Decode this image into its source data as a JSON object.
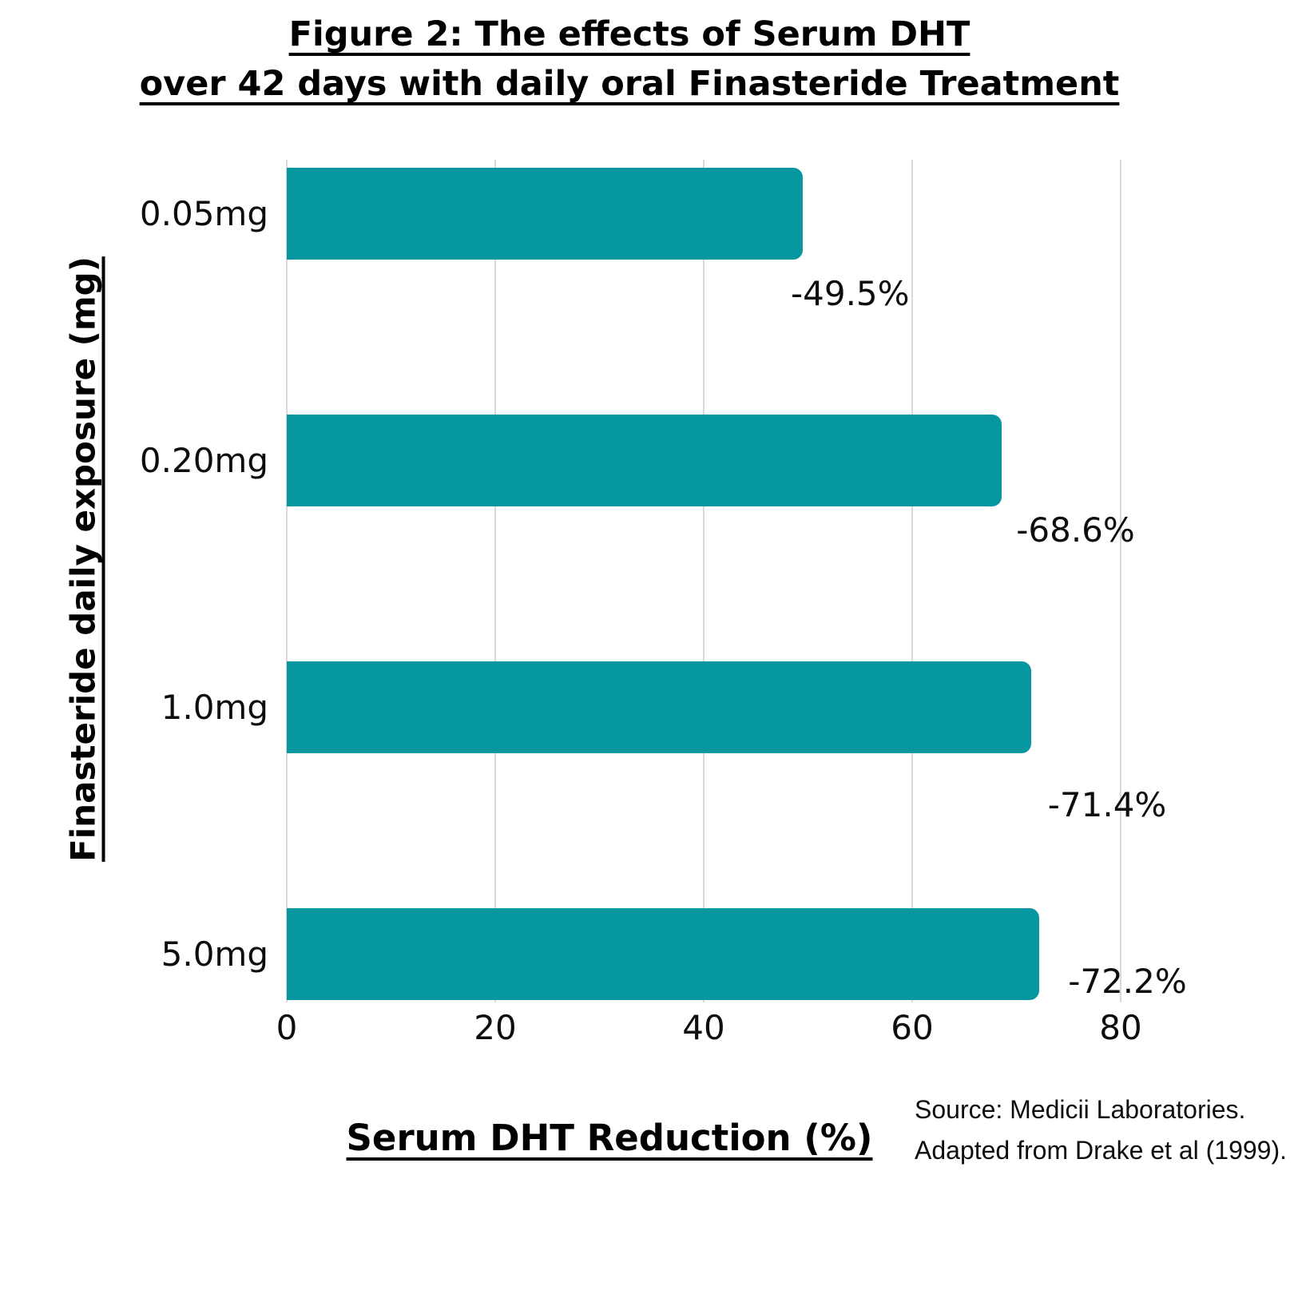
{
  "title": {
    "line1": "Figure 2: The effects of Serum DHT",
    "line2": "over 42 days with daily oral Finasteride Treatment"
  },
  "chart_data": {
    "type": "bar",
    "orientation": "horizontal",
    "title": "Figure 2: The effects of Serum DHT over 42 days with daily oral Finasteride Treatment",
    "categories": [
      "0.05mg",
      "0.20mg",
      "1.0mg",
      "5.0mg"
    ],
    "values": [
      49.5,
      68.6,
      71.4,
      72.2
    ],
    "value_labels": [
      "-49.5%",
      "-68.6%",
      "-71.4%",
      "-72.2%"
    ],
    "xlabel": "Serum DHT Reduction (%)",
    "ylabel": "Finasteride daily exposure (mg)",
    "xlim": [
      0,
      80
    ],
    "x_ticks": [
      0,
      20,
      40,
      60,
      80
    ],
    "grid": true,
    "legend": "none",
    "bar_color": "#0797A0",
    "gridline_color": "#D9D9D9",
    "text_color": "#0d0d0d"
  },
  "source": {
    "line1": "Source: Medicii Laboratories.",
    "line2": "Adapted from Drake et al (1999)."
  }
}
